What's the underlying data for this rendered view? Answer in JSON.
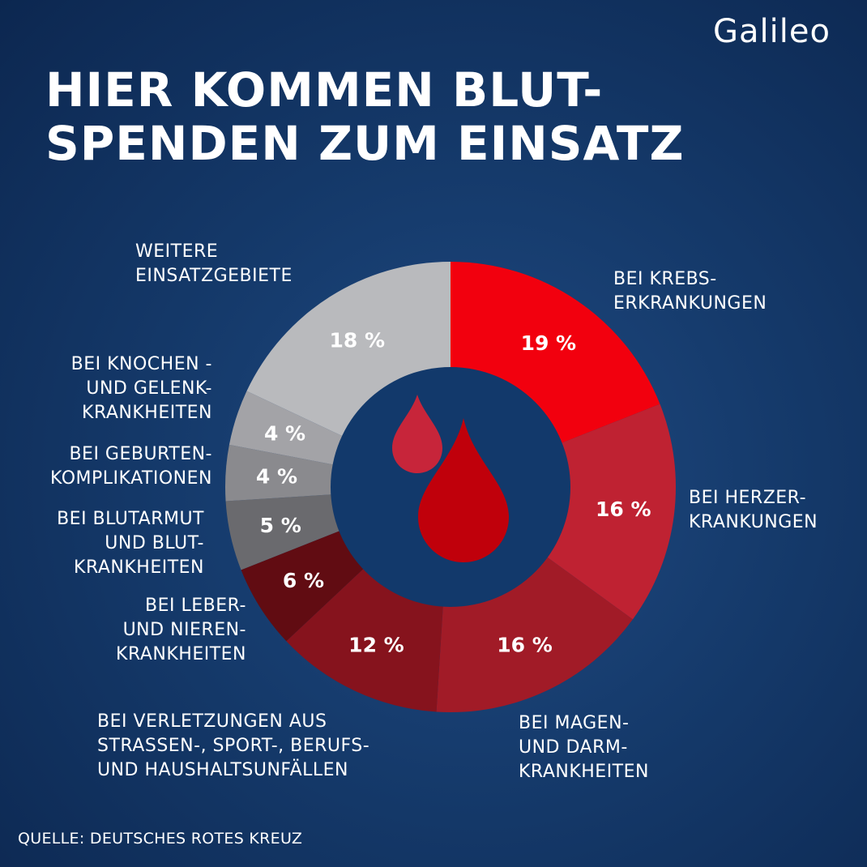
{
  "logo": "Galileo",
  "title_lines": [
    "HIER KOMMEN BLUT-",
    "SPENDEN ZUM EINSATZ"
  ],
  "source": "QUELLE: DEUTSCHES ROTES KREUZ",
  "colors": {
    "background": "#153a6b",
    "hole": "#12396b",
    "drop_small": "#c7253a",
    "drop_large": "#c0000b"
  },
  "center_icon": "blood-drops-icon",
  "chart_data": {
    "type": "pie",
    "style": "donut",
    "unit": "%",
    "slices": [
      {
        "key": "krebs",
        "value": 19,
        "value_label": "19 %",
        "label_lines": [
          "BEI KREBS-",
          "ERKRANKUNGEN"
        ],
        "color": "#f2000e"
      },
      {
        "key": "herz",
        "value": 16,
        "value_label": "16 %",
        "label_lines": [
          "BEI HERZER-",
          "KRANKUNGEN"
        ],
        "color": "#bf2232"
      },
      {
        "key": "magen",
        "value": 16,
        "value_label": "16 %",
        "label_lines": [
          "BEI MAGEN-",
          "UND DARM-",
          "KRANKHEITEN"
        ],
        "color": "#a11b27"
      },
      {
        "key": "verletzungen",
        "value": 12,
        "value_label": "12 %",
        "label_lines": [
          "BEI VERLETZUNGEN AUS",
          "STRASSEN-, SPORT-, BERUFS-",
          "UND HAUSHALTSUNFÄLLEN"
        ],
        "color": "#86131d"
      },
      {
        "key": "leber",
        "value": 6,
        "value_label": "6 %",
        "label_lines": [
          "BEI LEBER-",
          "UND NIEREN-",
          "KRANKHEITEN"
        ],
        "color": "#610c12"
      },
      {
        "key": "blutarmut",
        "value": 5,
        "value_label": "5 %",
        "label_lines": [
          "BEI BLUTARMUT",
          "UND BLUT-",
          "KRANKHEITEN"
        ],
        "color": "#6a6a6e"
      },
      {
        "key": "geburt",
        "value": 4,
        "value_label": "4 %",
        "label_lines": [
          "BEI GEBURTEN-",
          "KOMPLIKATIONEN"
        ],
        "color": "#8a8a8e"
      },
      {
        "key": "knochen",
        "value": 4,
        "value_label": "4 %",
        "label_lines": [
          "BEI KNOCHEN -",
          "UND GELENK-",
          "KRANKHEITEN"
        ],
        "color": "#a3a3a7"
      },
      {
        "key": "weitere",
        "value": 18,
        "value_label": "18 %",
        "label_lines": [
          "WEITERE",
          "EINSATZGEBIETE"
        ],
        "color": "#b9babd"
      }
    ]
  }
}
